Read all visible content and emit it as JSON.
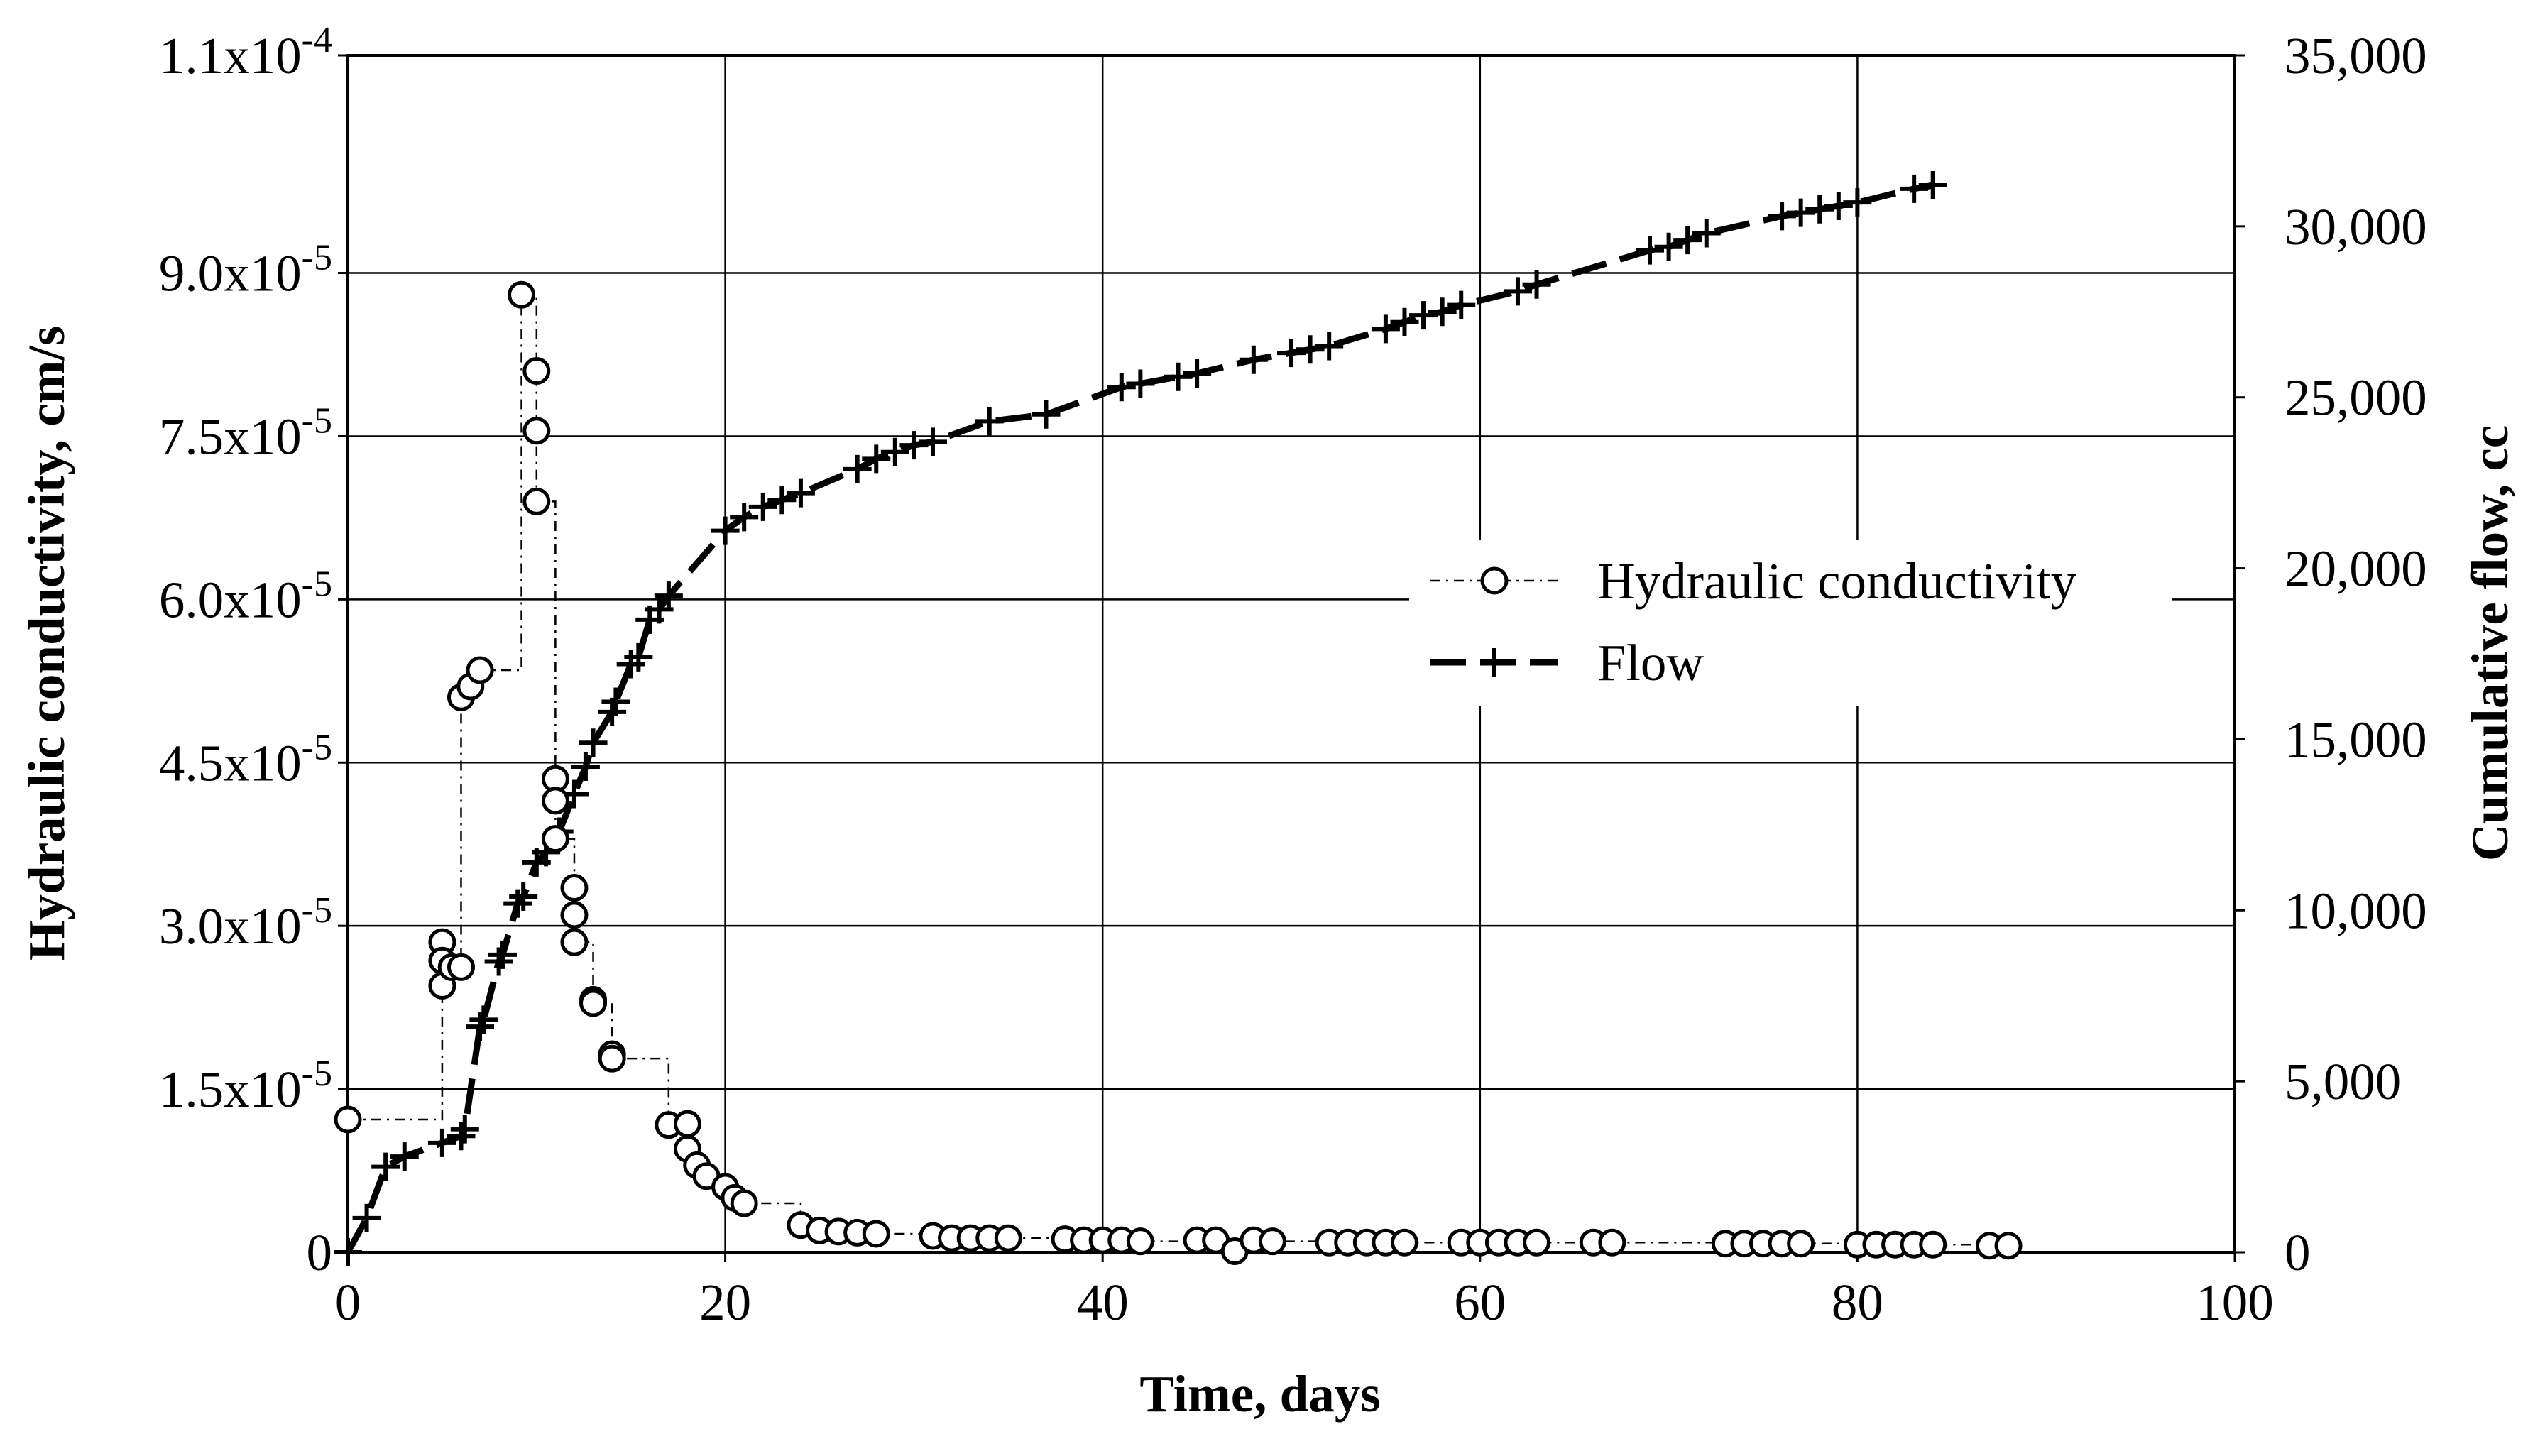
{
  "chart_data": {
    "type": "line",
    "title": "",
    "xlabel": "Time, days",
    "ylabel_left": "Hydraulic conductivity, cm/s",
    "ylabel_right": "Cumulative flow, cc",
    "xlim": [
      0,
      100
    ],
    "ylim_left": [
      0,
      0.00011
    ],
    "ylim_right": [
      0,
      35000
    ],
    "grid": true,
    "legend_position": "center-right",
    "x_ticks": [
      {
        "value": 0,
        "label": "0"
      },
      {
        "value": 20,
        "label": "20"
      },
      {
        "value": 40,
        "label": "40"
      },
      {
        "value": 60,
        "label": "60"
      },
      {
        "value": 80,
        "label": "80"
      },
      {
        "value": 100,
        "label": "100"
      }
    ],
    "y_left_ticks": [
      {
        "value": 0,
        "mant": "0",
        "exp": ""
      },
      {
        "value": 1.5e-05,
        "mant": "1.5x10",
        "exp": "-5"
      },
      {
        "value": 3e-05,
        "mant": "3.0x10",
        "exp": "-5"
      },
      {
        "value": 4.5e-05,
        "mant": "4.5x10",
        "exp": "-5"
      },
      {
        "value": 6e-05,
        "mant": "6.0x10",
        "exp": "-5"
      },
      {
        "value": 7.5e-05,
        "mant": "7.5x10",
        "exp": "-5"
      },
      {
        "value": 9e-05,
        "mant": "9.0x10",
        "exp": "-5"
      },
      {
        "value": 0.00011,
        "mant": "1.1x10",
        "exp": "-4"
      }
    ],
    "y_right_ticks": [
      {
        "value": 0,
        "label": "0"
      },
      {
        "value": 5000,
        "label": "5,000"
      },
      {
        "value": 10000,
        "label": "10,000"
      },
      {
        "value": 15000,
        "label": "15,000"
      },
      {
        "value": 20000,
        "label": "20,000"
      },
      {
        "value": 25000,
        "label": "25,000"
      },
      {
        "value": 30000,
        "label": "30,000"
      },
      {
        "value": 35000,
        "label": "35,000"
      }
    ],
    "series": [
      {
        "name": "Hydraulic conductivity",
        "axis": "left",
        "marker": "circle",
        "line_style": "dash-dot",
        "step": true,
        "color": "#000000",
        "x": [
          0,
          5,
          5,
          5,
          5.5,
          6,
          6,
          6.5,
          7,
          9.2,
          10,
          10,
          10,
          11,
          11,
          11,
          12,
          12,
          12,
          13,
          13,
          14,
          14,
          17,
          18,
          18,
          18.5,
          19,
          20,
          20.5,
          21,
          24,
          25,
          26,
          27,
          28,
          31,
          32,
          33,
          34,
          35,
          38,
          39,
          40,
          41,
          42,
          45,
          46,
          47,
          48,
          49,
          52,
          53,
          54,
          55,
          56,
          59,
          60,
          61,
          62,
          63,
          66,
          67,
          73,
          74,
          75,
          76,
          77,
          80,
          81,
          82,
          83,
          84,
          87,
          88
        ],
        "y": [
          1.22e-05,
          2.85e-05,
          2.45e-05,
          2.68e-05,
          2.62e-05,
          2.62e-05,
          5.1e-05,
          5.2e-05,
          5.35e-05,
          8.8e-05,
          8.1e-05,
          7.55e-05,
          6.9e-05,
          4.35e-05,
          4.15e-05,
          3.8e-05,
          3.35e-05,
          3.1e-05,
          2.85e-05,
          2.32e-05,
          2.29e-05,
          1.82e-05,
          1.78e-05,
          1.17e-05,
          1.18e-05,
          9.5e-06,
          8e-06,
          7e-06,
          6e-06,
          5e-06,
          4.5e-06,
          2.5e-06,
          2e-06,
          1.9e-06,
          1.8e-06,
          1.7e-06,
          1.5e-06,
          1.3e-06,
          1.3e-06,
          1.3e-06,
          1.3e-06,
          1.2e-06,
          1.1e-06,
          1.1e-06,
          1.1e-06,
          1e-06,
          1.1e-06,
          1.1e-06,
          1e-07,
          1.1e-06,
          1e-06,
          9e-07,
          9e-07,
          9e-07,
          9e-07,
          9e-07,
          9e-07,
          9e-07,
          9e-07,
          9e-07,
          9e-07,
          9e-07,
          9e-07,
          8e-07,
          8e-07,
          8e-07,
          8e-07,
          8e-07,
          7e-07,
          7e-07,
          7e-07,
          7e-07,
          7e-07,
          6e-07,
          6e-07
        ]
      },
      {
        "name": "Flow",
        "axis": "right",
        "marker": "plus",
        "line_style": "dash",
        "color": "#000000",
        "x": [
          0,
          1,
          2,
          3,
          5,
          6,
          6.2,
          7,
          7.2,
          8,
          8.2,
          9,
          9.3,
          10,
          10.5,
          11.2,
          12,
          12.6,
          13,
          14,
          14.2,
          15,
          15.4,
          16,
          16.5,
          17,
          20,
          21,
          22,
          23,
          24,
          27,
          28,
          29,
          30,
          31,
          34,
          37,
          41,
          42,
          44,
          45,
          48,
          50,
          51,
          52,
          55,
          56,
          57,
          58,
          59,
          62,
          63,
          69,
          70,
          71,
          72,
          76,
          77,
          78,
          79,
          80,
          83,
          84
        ],
        "y": [
          0,
          1000,
          2500,
          2800,
          3200,
          3400,
          3600,
          6600,
          6800,
          8500,
          8700,
          10200,
          10400,
          11400,
          11700,
          12300,
          13400,
          14200,
          14900,
          15800,
          16100,
          17200,
          17400,
          18500,
          18800,
          19200,
          21100,
          21500,
          21800,
          22000,
          22200,
          22900,
          23200,
          23400,
          23600,
          23700,
          24300,
          24500,
          25300,
          25400,
          25600,
          25700,
          26100,
          26300,
          26400,
          26500,
          27000,
          27200,
          27400,
          27500,
          27700,
          28100,
          28300,
          29300,
          29400,
          29600,
          29800,
          30300,
          30400,
          30500,
          30600,
          30700,
          31100,
          31200
        ]
      }
    ]
  }
}
